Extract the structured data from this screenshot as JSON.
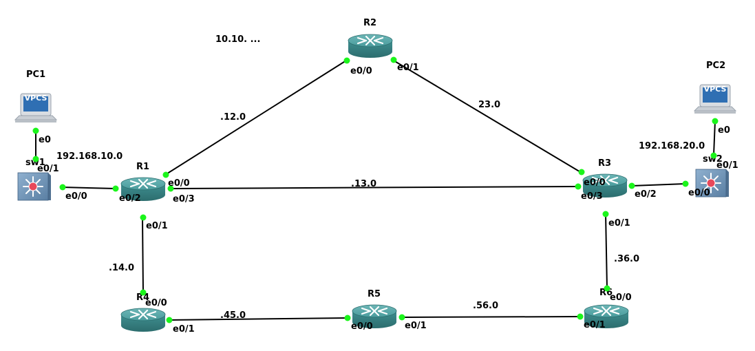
{
  "nodes": {
    "r1": {
      "label": "R1"
    },
    "r2": {
      "label": "R2"
    },
    "r3": {
      "label": "R3"
    },
    "r4": {
      "label": "R4"
    },
    "r5": {
      "label": "R5"
    },
    "r6": {
      "label": "R6"
    },
    "sw1": {
      "label": "sw1"
    },
    "sw2": {
      "label": "sw2"
    },
    "pc1": {
      "label": "PC1",
      "screen": "VPCS"
    },
    "pc2": {
      "label": "PC2",
      "screen": "VPCS"
    }
  },
  "networks": {
    "top": "10.10. ...",
    "r1_r2": ".12.0",
    "r2_r3": "23.0",
    "r1_r3": ".13.0",
    "r1_r4": ".14.0",
    "r4_r5": ".45.0",
    "r5_r6": ".56.0",
    "r3_r6": ".36.0",
    "lan1": "192.168.10.0",
    "lan2": "192.168.20.0"
  },
  "ports": {
    "pc1_e0": "e0",
    "sw1_e0_1": "e0/1",
    "sw1_e0_0": "e0/0",
    "r1_e0_2": "e0/2",
    "r1_e0_0": "e0/0",
    "r1_e0_3": "e0/3",
    "r1_e0_1": "e0/1",
    "r2_e0_0": "e0/0",
    "r2_e0_1": "e0/1",
    "r3_e0_0": "e0/0",
    "r3_e0_3": "e0/3",
    "r3_e0_2": "e0/2",
    "r3_e0_1": "e0/1",
    "sw2_e0_0": "e0/0",
    "sw2_e0_1": "e0/1",
    "pc2_e0": "e0",
    "r4_e0_0": "e0/0",
    "r4_e0_1": "e0/1",
    "r5_e0_0": "e0/0",
    "r5_e0_1": "e0/1",
    "r6_e0_0": "e0/0",
    "r6_e0_1": "e0/1"
  },
  "colors": {
    "router_body": "#3e8a8c",
    "router_top": "#5aa9aa",
    "switch_body": "#6c8fb0",
    "switch_center": "#e8485a",
    "link_dot": "#1bf51b",
    "vpcs_screen": "#2f6fb3"
  }
}
